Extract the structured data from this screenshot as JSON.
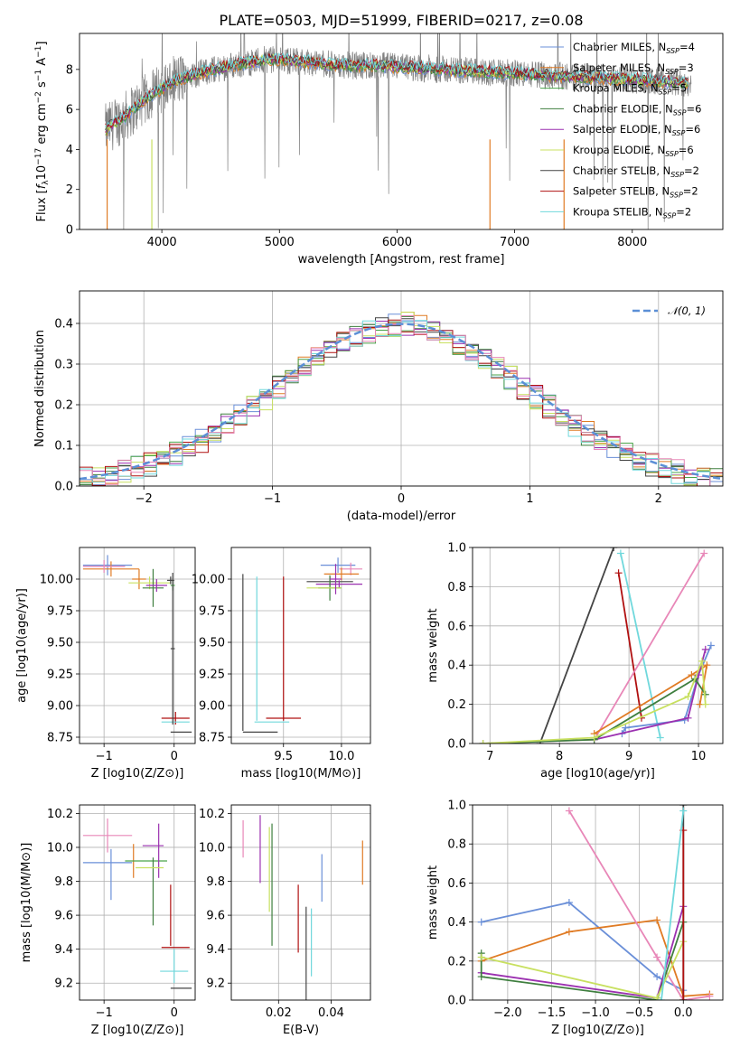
{
  "chart_data": [
    {
      "type": "line",
      "title": "PLATE=0503, MJD=51999, FIBERID=0217, z=0.08",
      "xlabel": "wavelength [Angstrom, rest frame]",
      "ylabel_parts": [
        "Flux [",
        "f",
        "λ",
        "10",
        "−17",
        " erg cm",
        "−2",
        " s",
        "−1",
        " A",
        "−1",
        "]"
      ],
      "xlim": [
        3300,
        8770
      ],
      "ylim": [
        0,
        9.8
      ],
      "xticks": [
        "4000",
        "5000",
        "6000",
        "7000",
        "8000"
      ],
      "yticks": [
        "0",
        "2",
        "4",
        "6",
        "8"
      ],
      "series": [
        {
          "name": "Chabrier MILES, N",
          "sub": "SSP",
          "suffix": "=4",
          "color": "#6a8fd8"
        },
        {
          "name": "Salpeter MILES, N",
          "sub": "SSP",
          "suffix": "=3",
          "color": "#e07b24"
        },
        {
          "name": "Kroupa MILES, N",
          "sub": "SSP",
          "suffix": "=5",
          "color": "#4aa34a"
        },
        {
          "name": "Chabrier ELODIE, N",
          "sub": "SSP",
          "suffix": "=6",
          "color": "#3f7f3f"
        },
        {
          "name": "Salpeter ELODIE, N",
          "sub": "SSP",
          "suffix": "=6",
          "color": "#9b30b0"
        },
        {
          "name": "Kroupa ELODIE, N",
          "sub": "SSP",
          "suffix": "=6",
          "color": "#c8e060"
        },
        {
          "name": "Chabrier STELIB, N",
          "sub": "SSP",
          "suffix": "=2",
          "color": "#444444"
        },
        {
          "name": "Salpeter STELIB, N",
          "sub": "SSP",
          "suffix": "=2",
          "color": "#b01010"
        },
        {
          "name": "Kroupa STELIB, N",
          "sub": "SSP",
          "suffix": "=2",
          "color": "#70d8dc"
        }
      ],
      "continuum": [
        [
          3520,
          5.0
        ],
        [
          3700,
          5.7
        ],
        [
          3900,
          6.7
        ],
        [
          4100,
          7.4
        ],
        [
          4300,
          7.8
        ],
        [
          4600,
          8.2
        ],
        [
          4900,
          8.5
        ],
        [
          5200,
          8.4
        ],
        [
          5500,
          8.2
        ],
        [
          5800,
          8.2
        ],
        [
          6100,
          8.1
        ],
        [
          6400,
          8.0
        ],
        [
          6700,
          7.9
        ],
        [
          7000,
          7.8
        ],
        [
          7300,
          7.7
        ],
        [
          7600,
          7.6
        ],
        [
          8000,
          7.5
        ],
        [
          8400,
          7.35
        ],
        [
          8500,
          7.3
        ]
      ],
      "data_color": "#808080"
    },
    {
      "type": "step",
      "xlabel": "(data-model)/error",
      "ylabel": "Normed distribution",
      "xlim": [
        -2.5,
        2.5
      ],
      "ylim": [
        0,
        0.48
      ],
      "xticks": [
        "−2",
        "−1",
        "0",
        "1",
        "2"
      ],
      "xtick_values": [
        -2,
        -1,
        0,
        1,
        2
      ],
      "yticks": [
        "0.0",
        "0.1",
        "0.2",
        "0.3",
        "0.4"
      ],
      "ytick_values": [
        0,
        0.1,
        0.2,
        0.3,
        0.4
      ],
      "gaussian_label": "𝒩(0, 1)",
      "gaussian_color": "#5b8fd6"
    },
    {
      "type": "errorbar",
      "xlabel": "Z [log10(Z/Z⊙)]",
      "ylabel": "age  [log10(age/yr)]",
      "xlim": [
        -1.35,
        0.3
      ],
      "ylim": [
        8.7,
        10.25
      ],
      "xticks": [
        "−1",
        "0"
      ],
      "xtick_values": [
        -1,
        0
      ],
      "yticks": [
        "8.75",
        "9.00",
        "9.25",
        "9.50",
        "9.75",
        "10.00"
      ],
      "ytick_values": [
        8.75,
        9.0,
        9.25,
        9.5,
        9.75,
        10.0
      ],
      "points": [
        {
          "x": -0.95,
          "xerr": 0.35,
          "y": 10.11,
          "yerr": 0.08,
          "color": "#6a8fd8"
        },
        {
          "x": -0.9,
          "xerr": 0.4,
          "y": 10.08,
          "yerr": 0.06,
          "color": "#e07b24"
        },
        {
          "x": -1.0,
          "xerr": 0.3,
          "y": 10.1,
          "yerr": 0.05,
          "color": "#e887b8"
        },
        {
          "x": -0.5,
          "xerr": 0.1,
          "y": 10.0,
          "yerr": 0.08,
          "color": "#e07b24"
        },
        {
          "x": -0.35,
          "xerr": 0.3,
          "y": 9.97,
          "yerr": 0.05,
          "color": "#c8e060"
        },
        {
          "x": -0.3,
          "xerr": 0.15,
          "y": 9.93,
          "yerr": 0.15,
          "color": "#3f7f3f"
        },
        {
          "x": -0.25,
          "xerr": 0.15,
          "y": 9.95,
          "yerr": 0.05,
          "color": "#9b30b0"
        },
        {
          "x": -0.05,
          "xerr": 0.05,
          "y": 9.99,
          "yerr": 0.03,
          "color": "#444444"
        },
        {
          "x": -0.02,
          "xerr": 0.03,
          "y": 9.95,
          "yerr": 0.04,
          "color": "#4aa34a"
        },
        {
          "x": 0.02,
          "xerr": 0.2,
          "y": 8.9,
          "yerr": 0.05,
          "color": "#b01010"
        },
        {
          "x": 0.02,
          "xerr": 0.2,
          "y": 8.87,
          "yerr": 0.0,
          "color": "#70d8dc"
        },
        {
          "x": -0.02,
          "xerr": 0.03,
          "y": 9.45,
          "yerr": 0.6,
          "color": "#444444"
        },
        {
          "x": 0.1,
          "xerr": 0.15,
          "y": 8.79,
          "yerr": 0.0,
          "color": "#444444"
        }
      ]
    },
    {
      "type": "errorbar",
      "xlabel": "mass [log10(M/M⊙)]",
      "xlim": [
        9.05,
        10.25
      ],
      "ylim": [
        8.7,
        10.25
      ],
      "xticks": [
        "9.5",
        "10.0"
      ],
      "xtick_values": [
        9.5,
        10.0
      ],
      "yticks": [
        "8.75",
        "9.00",
        "9.25",
        "9.50",
        "9.75",
        "10.00"
      ],
      "ytick_values": [
        8.75,
        9.0,
        9.25,
        9.5,
        9.75,
        10.0
      ],
      "points": [
        {
          "x": 9.97,
          "xerr": 0.15,
          "y": 10.11,
          "yerr": 0.06,
          "color": "#6a8fd8"
        },
        {
          "x": 10.08,
          "xerr": 0.1,
          "y": 10.08,
          "yerr": 0.05,
          "color": "#e887b8"
        },
        {
          "x": 10.0,
          "xerr": 0.15,
          "y": 10.04,
          "yerr": 0.05,
          "color": "#e07b24"
        },
        {
          "x": 9.9,
          "xerr": 0.2,
          "y": 9.98,
          "yerr": 0.04,
          "color": "#444444"
        },
        {
          "x": 9.98,
          "xerr": 0.2,
          "y": 9.96,
          "yerr": 0.03,
          "color": "#9b30b0"
        },
        {
          "x": 9.9,
          "xerr": 0.1,
          "y": 9.93,
          "yerr": 0.1,
          "color": "#3f7f3f"
        },
        {
          "x": 9.85,
          "xerr": 0.15,
          "y": 9.93,
          "yerr": 0.0,
          "color": "#c8e060"
        },
        {
          "x": 9.95,
          "xerr": 0.05,
          "y": 10.0,
          "yerr": 0.12,
          "color": "#9b30b0"
        },
        {
          "x": 9.5,
          "xerr": 0.15,
          "y": 8.9,
          "yerr": 0.0,
          "color": "#b01010"
        },
        {
          "x": 9.5,
          "xerr": 0.0,
          "y": 9.45,
          "yerr": 0.57,
          "color": "#b01010"
        },
        {
          "x": 9.4,
          "xerr": 0.15,
          "y": 8.87,
          "yerr": 0.0,
          "color": "#70d8dc"
        },
        {
          "x": 9.27,
          "xerr": 0.0,
          "y": 9.45,
          "yerr": 0.57,
          "color": "#70d8dc"
        },
        {
          "x": 9.15,
          "xerr": 0.0,
          "y": 9.42,
          "yerr": 0.62,
          "color": "#444444"
        },
        {
          "x": 9.3,
          "xerr": 0.15,
          "y": 8.79,
          "yerr": 0.0,
          "color": "#444444"
        }
      ]
    },
    {
      "type": "line",
      "xlabel": "age  [log10(age/yr)]",
      "ylabel": "mass weight",
      "xlim": [
        6.75,
        10.35
      ],
      "ylim": [
        0,
        1.0
      ],
      "xticks": [
        "7",
        "8",
        "9",
        "10"
      ],
      "xtick_values": [
        7,
        8,
        9,
        10
      ],
      "yticks": [
        "0.0",
        "0.2",
        "0.4",
        "0.6",
        "0.8",
        "1.0"
      ],
      "ytick_values": [
        0,
        0.2,
        0.4,
        0.6,
        0.8,
        1.0
      ],
      "series": [
        {
          "color": "#444444",
          "points": [
            [
              7.72,
              0.0
            ],
            [
              8.78,
              1.0
            ]
          ]
        },
        {
          "color": "#b01010",
          "points": [
            [
              8.85,
              0.87
            ],
            [
              9.18,
              0.13
            ]
          ]
        },
        {
          "color": "#70d8dc",
          "points": [
            [
              8.88,
              0.97
            ],
            [
              9.45,
              0.03
            ]
          ]
        },
        {
          "color": "#e887b8",
          "points": [
            [
              6.9,
              0.0
            ],
            [
              8.5,
              0.02
            ],
            [
              10.08,
              0.97
            ]
          ]
        },
        {
          "color": "#6a8fd8",
          "points": [
            [
              8.9,
              0.05
            ],
            [
              8.95,
              0.08
            ],
            [
              9.8,
              0.12
            ],
            [
              10.0,
              0.35
            ],
            [
              10.18,
              0.5
            ]
          ]
        },
        {
          "color": "#e07b24",
          "points": [
            [
              8.5,
              0.05
            ],
            [
              9.9,
              0.35
            ],
            [
              10.12,
              0.4
            ],
            [
              10.02,
              0.2
            ]
          ]
        },
        {
          "color": "#9b30b0",
          "points": [
            [
              8.5,
              0.02
            ],
            [
              9.85,
              0.13
            ],
            [
              10.0,
              0.35
            ],
            [
              10.1,
              0.48
            ]
          ]
        },
        {
          "color": "#3f7f3f",
          "points": [
            [
              6.9,
              0.0
            ],
            [
              8.5,
              0.02
            ],
            [
              9.95,
              0.33
            ],
            [
              10.1,
              0.25
            ]
          ]
        },
        {
          "color": "#c8e060",
          "points": [
            [
              6.9,
              0.0
            ],
            [
              8.5,
              0.03
            ],
            [
              9.85,
              0.24
            ],
            [
              10.05,
              0.42
            ],
            [
              10.1,
              0.2
            ]
          ]
        }
      ]
    },
    {
      "type": "errorbar",
      "xlabel": "Z [log10(Z/Z⊙)]",
      "ylabel": "mass [log10(M/M⊙)]",
      "xlim": [
        -1.35,
        0.3
      ],
      "ylim": [
        9.1,
        10.25
      ],
      "xticks": [
        "−1",
        "0"
      ],
      "xtick_values": [
        -1,
        0
      ],
      "yticks": [
        "9.2",
        "9.4",
        "9.6",
        "9.8",
        "10.0",
        "10.2"
      ],
      "ytick_values": [
        9.2,
        9.4,
        9.6,
        9.8,
        10.0,
        10.2
      ],
      "points": [
        {
          "x": -0.95,
          "xerr": 0.35,
          "y": 9.91,
          "yerr": 0.0,
          "color": "#6a8fd8"
        },
        {
          "x": -0.9,
          "xerr": 0.0,
          "y": 9.84,
          "yerr": 0.15,
          "color": "#6a8fd8"
        },
        {
          "x": -0.95,
          "xerr": 0.35,
          "y": 10.07,
          "yerr": 0.1,
          "color": "#e887b8"
        },
        {
          "x": -0.58,
          "xerr": 0.0,
          "y": 9.92,
          "yerr": 0.1,
          "color": "#e07b24"
        },
        {
          "x": -0.4,
          "xerr": 0.3,
          "y": 9.92,
          "yerr": 0.0,
          "color": "#4aa34a"
        },
        {
          "x": -0.3,
          "xerr": 0.15,
          "y": 10.01,
          "yerr": 0.0,
          "color": "#9b30b0"
        },
        {
          "x": -0.22,
          "xerr": 0.0,
          "y": 9.98,
          "yerr": 0.16,
          "color": "#9b30b0"
        },
        {
          "x": -0.3,
          "xerr": 0.0,
          "y": 9.74,
          "yerr": 0.2,
          "color": "#3f7f3f"
        },
        {
          "x": -0.35,
          "xerr": 0.2,
          "y": 9.88,
          "yerr": 0.0,
          "color": "#c8e060"
        },
        {
          "x": -0.05,
          "xerr": 0.0,
          "y": 9.6,
          "yerr": 0.18,
          "color": "#b01010"
        },
        {
          "x": 0.02,
          "xerr": 0.2,
          "y": 9.41,
          "yerr": 0.0,
          "color": "#b01010"
        },
        {
          "x": 0.0,
          "xerr": 0.2,
          "y": 9.27,
          "yerr": 0.0,
          "color": "#70d8dc"
        },
        {
          "x": 0.0,
          "xerr": 0.0,
          "y": 9.3,
          "yerr": 0.1,
          "color": "#70d8dc"
        },
        {
          "x": 0.1,
          "xerr": 0.15,
          "y": 9.17,
          "yerr": 0.0,
          "color": "#444444"
        }
      ]
    },
    {
      "type": "errorbar",
      "xlabel": "E(B-V)",
      "xlim": [
        0.002,
        0.055
      ],
      "ylim": [
        9.1,
        10.25
      ],
      "xticks": [
        "0.02",
        "0.04"
      ],
      "xtick_values": [
        0.02,
        0.04
      ],
      "yticks": [
        "9.2",
        "9.4",
        "9.6",
        "9.8",
        "10.0",
        "10.2"
      ],
      "ytick_values": [
        9.2,
        9.4,
        9.6,
        9.8,
        10.0,
        10.2
      ],
      "points": [
        {
          "x": 0.0065,
          "xerr": 0.0,
          "y": 10.05,
          "yerr": 0.11,
          "color": "#e887b8"
        },
        {
          "x": 0.013,
          "xerr": 0.0,
          "y": 9.99,
          "yerr": 0.2,
          "color": "#9b30b0"
        },
        {
          "x": 0.0175,
          "xerr": 0.0,
          "y": 9.78,
          "yerr": 0.36,
          "color": "#3f7f3f"
        },
        {
          "x": 0.0165,
          "xerr": 0.0,
          "y": 9.87,
          "yerr": 0.25,
          "color": "#c8e060"
        },
        {
          "x": 0.0275,
          "xerr": 0.0,
          "y": 9.58,
          "yerr": 0.2,
          "color": "#b01010"
        },
        {
          "x": 0.0305,
          "xerr": 0.0,
          "y": 9.37,
          "yerr": 0.28,
          "color": "#444444"
        },
        {
          "x": 0.0325,
          "xerr": 0.0,
          "y": 9.44,
          "yerr": 0.2,
          "color": "#70d8dc"
        },
        {
          "x": 0.0365,
          "xerr": 0.0,
          "y": 9.82,
          "yerr": 0.14,
          "color": "#6a8fd8"
        },
        {
          "x": 0.052,
          "xerr": 0.0,
          "y": 9.91,
          "yerr": 0.13,
          "color": "#e07b24"
        }
      ]
    },
    {
      "type": "line",
      "xlabel": "Z [log10(Z/Z⊙)]",
      "ylabel": "mass weight",
      "xlim": [
        -2.4,
        0.45
      ],
      "ylim": [
        0,
        1.0
      ],
      "xticks": [
        "−2.0",
        "−1.5",
        "−1.0",
        "−0.5",
        "0.0"
      ],
      "xtick_values": [
        -2.0,
        -1.5,
        -1.0,
        -0.5,
        0.0
      ],
      "yticks": [
        "0.0",
        "0.2",
        "0.4",
        "0.6",
        "0.8",
        "1.0"
      ],
      "ytick_values": [
        0,
        0.2,
        0.4,
        0.6,
        0.8,
        1.0
      ],
      "series": [
        {
          "color": "#6a8fd8",
          "points": [
            [
              -2.3,
              0.4
            ],
            [
              -1.3,
              0.5
            ],
            [
              -0.3,
              0.12
            ],
            [
              0.0,
              0.05
            ]
          ]
        },
        {
          "color": "#e07b24",
          "points": [
            [
              -2.3,
              0.2
            ],
            [
              -1.3,
              0.35
            ],
            [
              -0.3,
              0.41
            ],
            [
              0.0,
              0.02
            ],
            [
              0.3,
              0.03
            ]
          ]
        },
        {
          "color": "#e887b8",
          "points": [
            [
              -1.3,
              0.97
            ],
            [
              -0.3,
              0.22
            ],
            [
              0.0,
              0.0
            ],
            [
              0.3,
              0.02
            ]
          ]
        },
        {
          "color": "#9b30b0",
          "points": [
            [
              -2.3,
              0.14
            ],
            [
              -0.3,
              0.01
            ],
            [
              0.0,
              0.48
            ]
          ]
        },
        {
          "color": "#3f7f3f",
          "points": [
            [
              -2.3,
              0.24
            ],
            [
              -2.3,
              0.12
            ],
            [
              -0.3,
              0.0
            ],
            [
              0.0,
              0.4
            ]
          ]
        },
        {
          "color": "#c8e060",
          "points": [
            [
              -2.3,
              0.22
            ],
            [
              -0.3,
              0.01
            ],
            [
              0.0,
              0.3
            ]
          ]
        },
        {
          "color": "#444444",
          "points": [
            [
              0.0,
              0.0
            ],
            [
              0.0,
              1.0
            ]
          ]
        },
        {
          "color": "#b01010",
          "points": [
            [
              0.0,
              0.0
            ],
            [
              0.0,
              0.87
            ]
          ]
        },
        {
          "color": "#70d8dc",
          "points": [
            [
              -0.25,
              0.0
            ],
            [
              0.0,
              0.97
            ]
          ]
        }
      ]
    }
  ]
}
